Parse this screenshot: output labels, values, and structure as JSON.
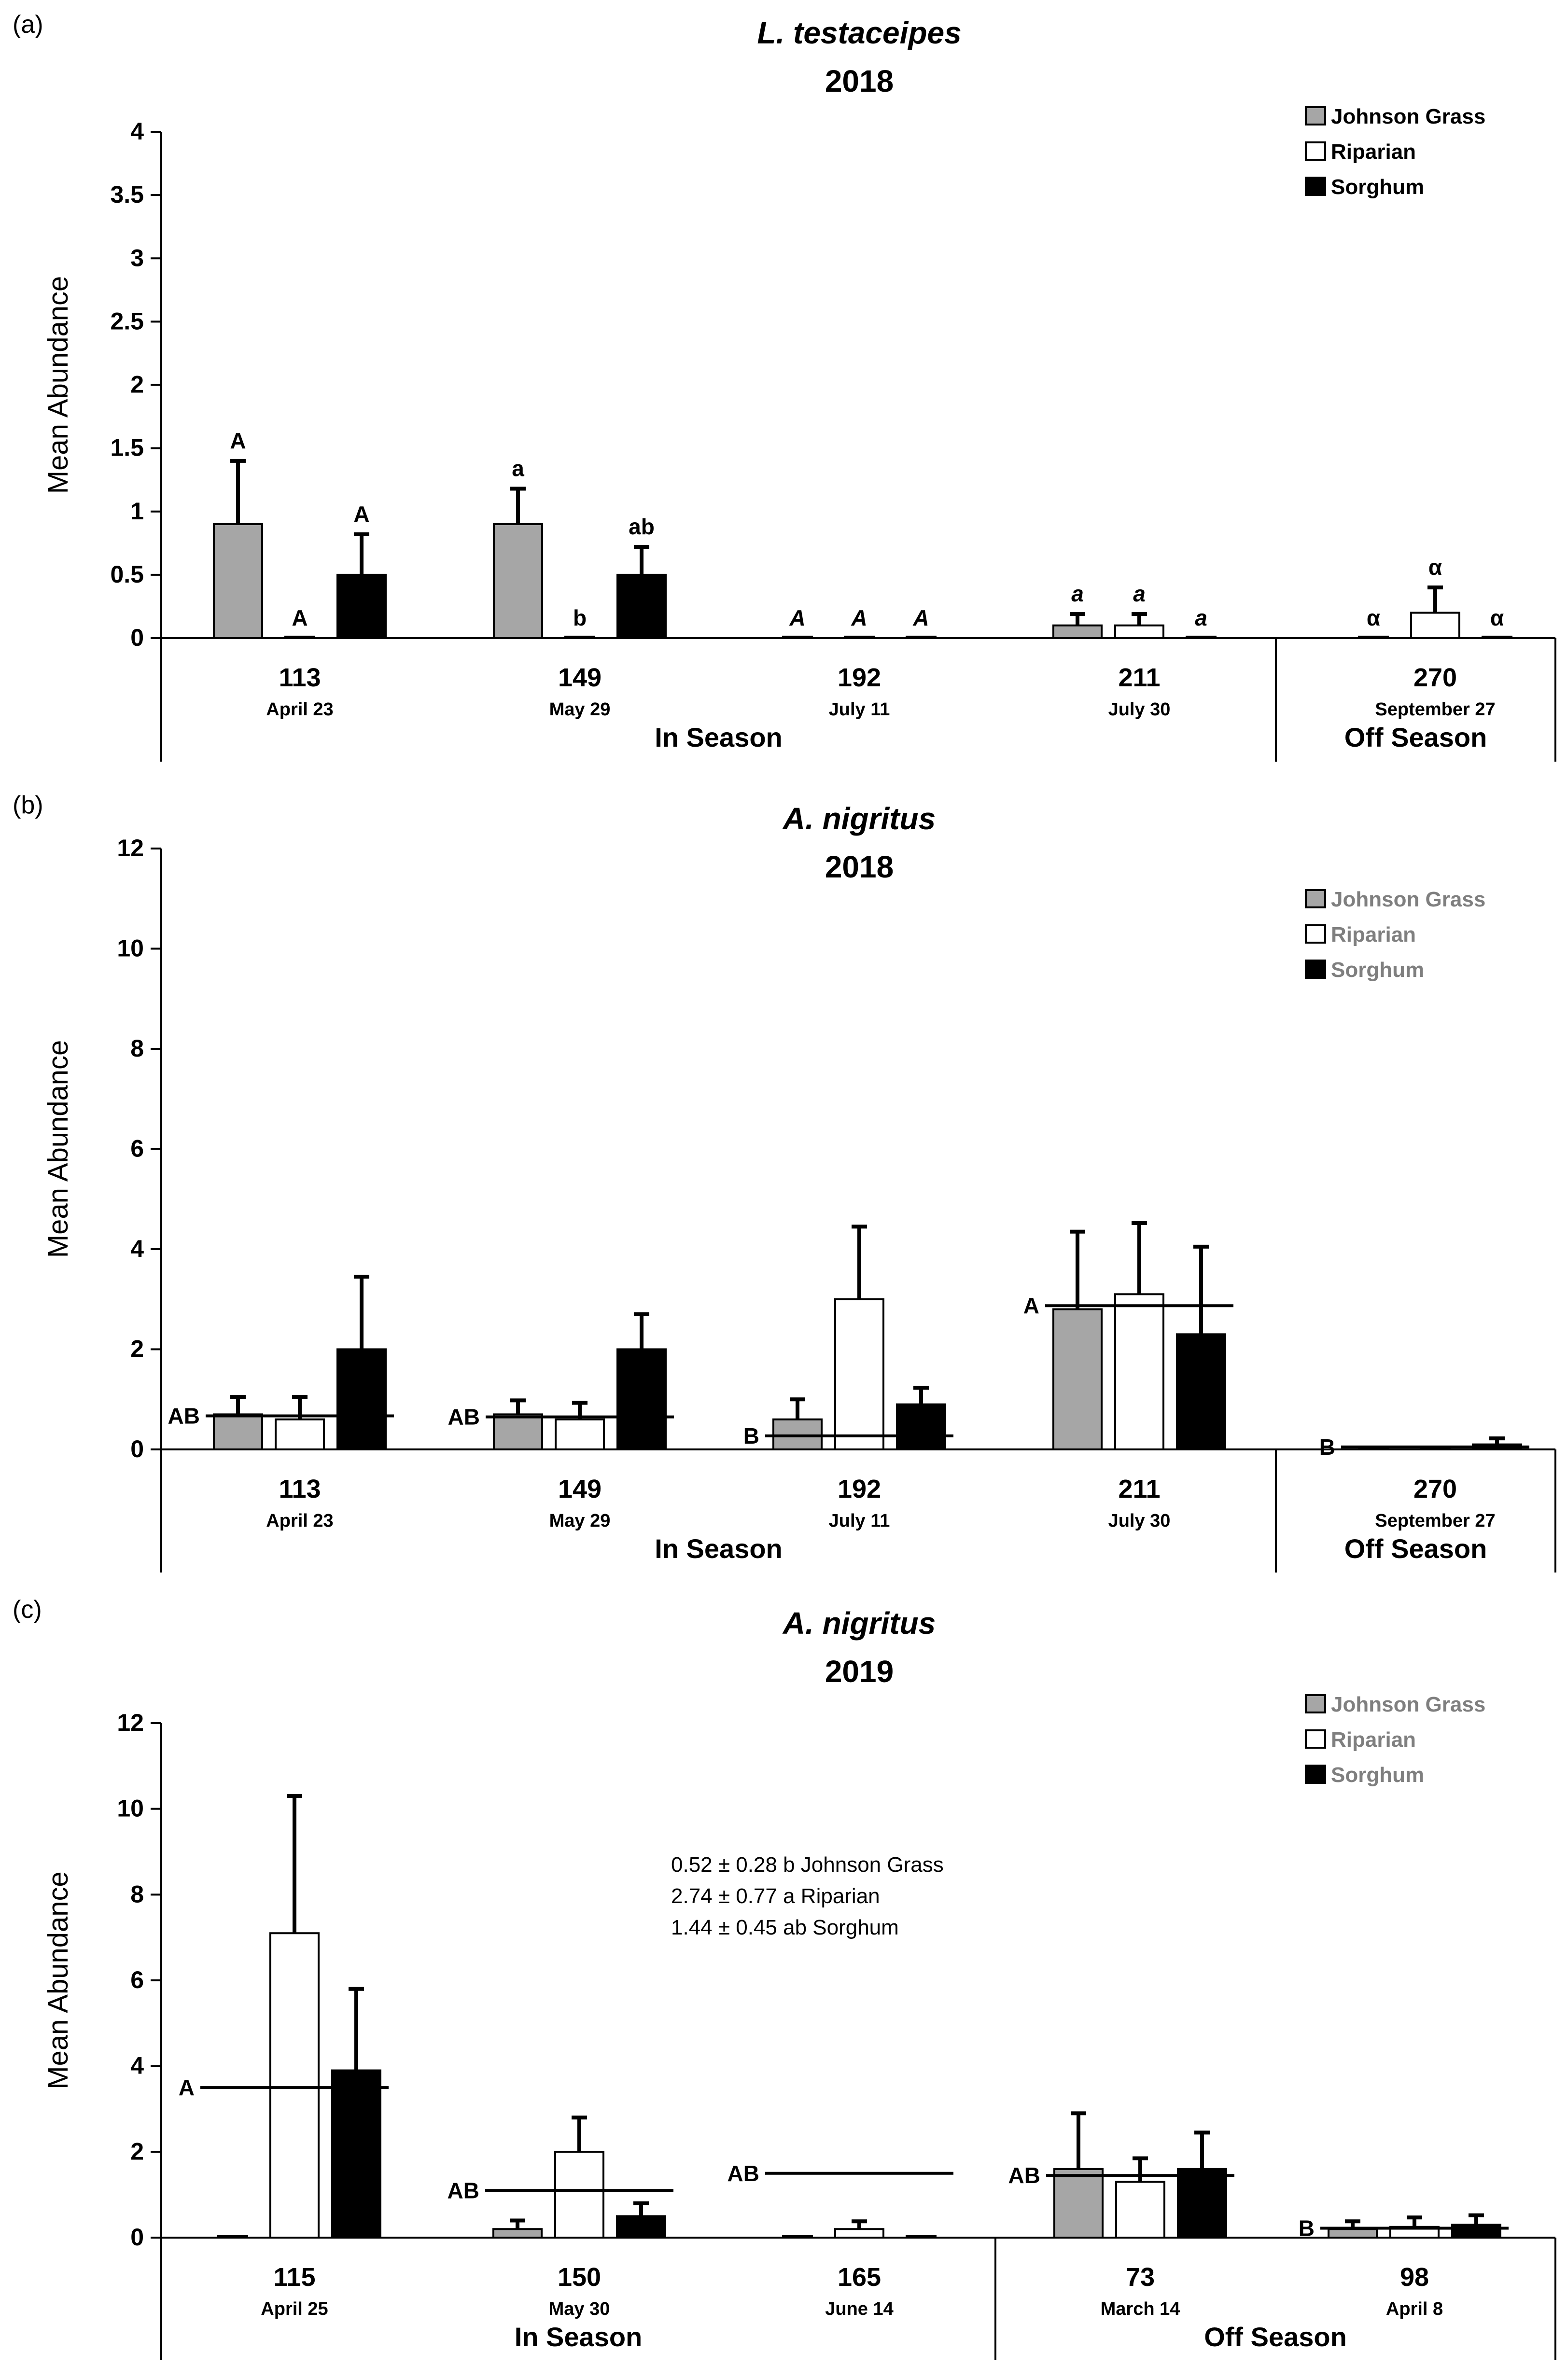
{
  "chart_data": [
    {
      "type": "bar",
      "panel_label": "(a)",
      "title_species": "L. testaceipes",
      "title_year": "2018",
      "ylabel": "Mean Abundance",
      "ylim": [
        0,
        4
      ],
      "yticks": [
        0,
        0.5,
        1,
        1.5,
        2,
        2.5,
        3,
        3.5,
        4
      ],
      "ytick_labels": [
        "0",
        "0.5",
        "1",
        "1.5",
        "2",
        "2.5",
        "3",
        "3.5",
        "4"
      ],
      "legend": [
        "Johnson Grass",
        "Riparian",
        "Sorghum"
      ],
      "colors": [
        "#a6a6a6",
        "#ffffff",
        "#000000"
      ],
      "legend_color": "#000000",
      "categories": [
        {
          "day": "113",
          "date": "April 23"
        },
        {
          "day": "149",
          "date": "May 29"
        },
        {
          "day": "192",
          "date": "July 11"
        },
        {
          "day": "211",
          "date": "July 30"
        },
        {
          "day": "270",
          "date": "September 27"
        }
      ],
      "groups": [
        {
          "label": "In Season",
          "count": 4
        },
        {
          "label": "Off Season",
          "count": 1
        }
      ],
      "series": [
        {
          "name": "Johnson Grass",
          "values": [
            0.9,
            0.9,
            0,
            0.1,
            0
          ],
          "errors": [
            0.5,
            0.28,
            0,
            0.09,
            0
          ],
          "letters": [
            "A",
            "a",
            "A",
            "a",
            "α"
          ]
        },
        {
          "name": "Riparian",
          "values": [
            0,
            0,
            0,
            0.1,
            0.2
          ],
          "errors": [
            0,
            0,
            0,
            0.09,
            0.2
          ],
          "letters": [
            "A",
            "b",
            "A",
            "a",
            "α"
          ]
        },
        {
          "name": "Sorghum",
          "values": [
            0.5,
            0.5,
            0,
            0,
            0
          ],
          "errors": [
            0.32,
            0.22,
            0,
            0,
            0
          ],
          "letters": [
            "A",
            "ab",
            "A",
            "a",
            "α"
          ]
        }
      ],
      "letter_style": [
        "normal",
        "normal",
        "italic",
        "italic",
        "normal"
      ],
      "group_lines": []
    },
    {
      "type": "bar",
      "panel_label": "(b)",
      "title_species": "A. nigritus",
      "title_year": "2018",
      "ylabel": "Mean Abundance",
      "ylim": [
        0,
        12
      ],
      "yticks": [
        0,
        2,
        4,
        6,
        8,
        10,
        12
      ],
      "ytick_labels": [
        "0",
        "2",
        "4",
        "6",
        "8",
        "10",
        "12"
      ],
      "legend": [
        "Johnson Grass",
        "Riparian",
        "Sorghum"
      ],
      "colors": [
        "#a6a6a6",
        "#ffffff",
        "#000000"
      ],
      "legend_color": "#7f7f7f",
      "categories": [
        {
          "day": "113",
          "date": "April 23"
        },
        {
          "day": "149",
          "date": "May 29"
        },
        {
          "day": "192",
          "date": "July 11"
        },
        {
          "day": "211",
          "date": "July 30"
        },
        {
          "day": "270",
          "date": "September 27"
        }
      ],
      "groups": [
        {
          "label": "In Season",
          "count": 4
        },
        {
          "label": "Off Season",
          "count": 1
        }
      ],
      "series": [
        {
          "name": "Johnson Grass",
          "values": [
            0.7,
            0.7,
            0.6,
            2.8,
            0
          ],
          "errors": [
            0.35,
            0.28,
            0.4,
            1.55,
            0
          ]
        },
        {
          "name": "Riparian",
          "values": [
            0.6,
            0.6,
            3.0,
            3.1,
            0
          ],
          "errors": [
            0.45,
            0.33,
            1.45,
            1.42,
            0
          ]
        },
        {
          "name": "Sorghum",
          "values": [
            2.0,
            2.0,
            0.9,
            2.3,
            0.1
          ],
          "errors": [
            1.45,
            0.7,
            0.33,
            1.75,
            0.12
          ]
        }
      ],
      "group_lines": [
        {
          "cat": 0,
          "value": 0.67,
          "letter": "AB"
        },
        {
          "cat": 1,
          "value": 0.65,
          "letter": "AB"
        },
        {
          "cat": 2,
          "value": 0.27,
          "letter": "B"
        },
        {
          "cat": 3,
          "value": 2.87,
          "letter": "A"
        },
        {
          "cat": 4,
          "value": 0.05,
          "letter": "B"
        }
      ]
    },
    {
      "type": "bar",
      "panel_label": "(c)",
      "title_species": "A. nigritus",
      "title_year": "2019",
      "ylabel": "Mean Abundance",
      "ylim": [
        0,
        12
      ],
      "yticks": [
        0,
        2,
        4,
        6,
        8,
        10,
        12
      ],
      "ytick_labels": [
        "0",
        "2",
        "4",
        "6",
        "8",
        "10",
        "12"
      ],
      "legend": [
        "Johnson Grass",
        "Riparian",
        "Sorghum"
      ],
      "colors": [
        "#a6a6a6",
        "#ffffff",
        "#000000"
      ],
      "legend_color": "#7f7f7f",
      "categories": [
        {
          "day": "115",
          "date": "April 25"
        },
        {
          "day": "150",
          "date": "May 30"
        },
        {
          "day": "165",
          "date": "June 14"
        },
        {
          "day": "73",
          "date": "March 14"
        },
        {
          "day": "98",
          "date": "April 8"
        }
      ],
      "groups": [
        {
          "label": "In Season",
          "count": 3
        },
        {
          "label": "Off Season",
          "count": 2
        }
      ],
      "series": [
        {
          "name": "Johnson Grass",
          "values": [
            0,
            0.2,
            0,
            1.6,
            0.2
          ],
          "errors": [
            0,
            0.2,
            0,
            1.3,
            0.18
          ]
        },
        {
          "name": "Riparian",
          "values": [
            7.1,
            2.0,
            0.2,
            1.3,
            0.25
          ],
          "errors": [
            3.2,
            0.8,
            0.18,
            0.55,
            0.22
          ]
        },
        {
          "name": "Sorghum",
          "values": [
            3.9,
            0.5,
            0,
            1.6,
            0.3
          ],
          "errors": [
            1.9,
            0.3,
            0,
            0.85,
            0.22
          ]
        }
      ],
      "group_lines": [
        {
          "cat": 0,
          "value": 3.5,
          "letter": "A"
        },
        {
          "cat": 1,
          "value": 1.1,
          "letter": "AB"
        },
        {
          "cat": 2,
          "value": 1.5,
          "letter": "AB"
        },
        {
          "cat": 3,
          "value": 1.45,
          "letter": "AB"
        },
        {
          "cat": 4,
          "value": 0.22,
          "letter": "B"
        }
      ],
      "annotations": [
        "0.52 ± 0.28 b Johnson Grass",
        "2.74 ± 0.77 a Riparian",
        "1.44 ± 0.45 ab Sorghum"
      ]
    }
  ]
}
